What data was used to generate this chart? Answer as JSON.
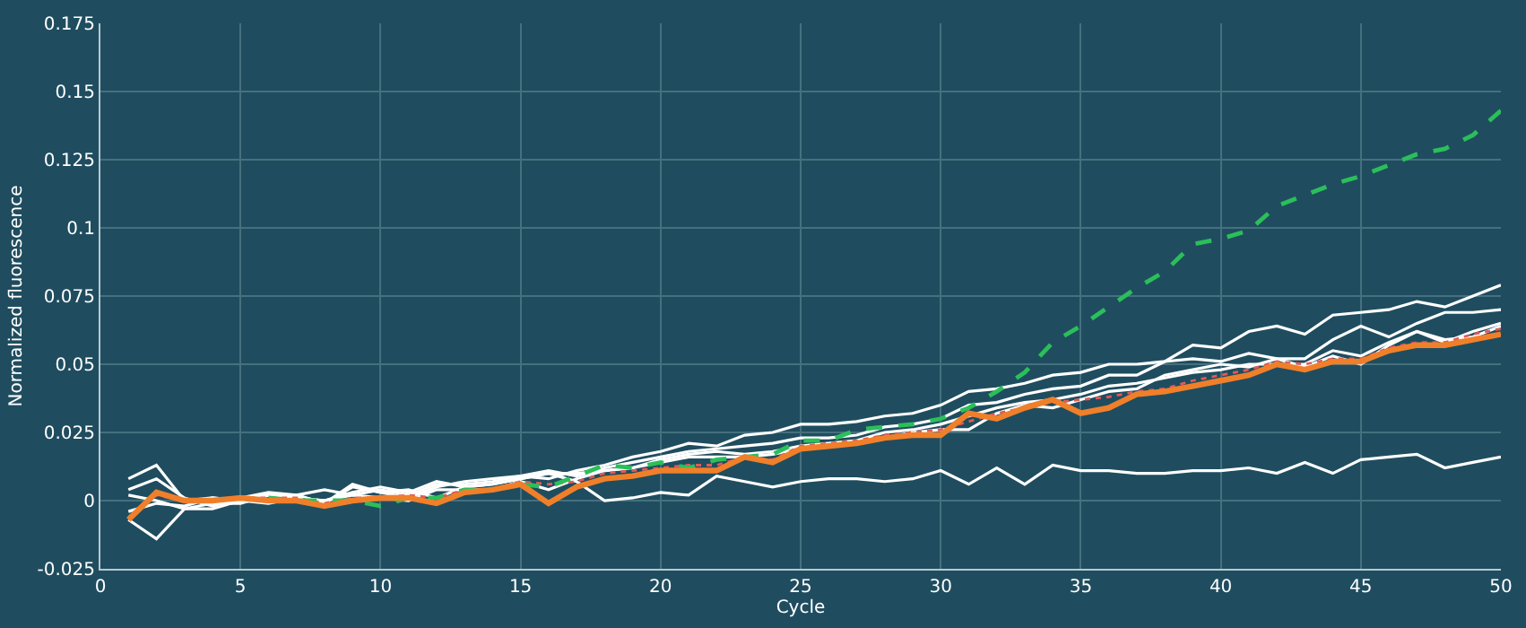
{
  "chart_data": {
    "type": "line",
    "xlabel": "Cycle",
    "ylabel": "Normalized fluorescence",
    "x": [
      1,
      2,
      3,
      4,
      5,
      6,
      7,
      8,
      9,
      10,
      11,
      12,
      13,
      14,
      15,
      16,
      17,
      18,
      19,
      20,
      21,
      22,
      23,
      24,
      25,
      26,
      27,
      28,
      29,
      30,
      31,
      32,
      33,
      34,
      35,
      36,
      37,
      38,
      39,
      40,
      41,
      42,
      43,
      44,
      45,
      46,
      47,
      48,
      49,
      50
    ],
    "xlim": [
      0,
      50
    ],
    "xticks": [
      0,
      5,
      10,
      15,
      20,
      25,
      30,
      35,
      40,
      45,
      50
    ],
    "ylim": [
      -0.025,
      0.175
    ],
    "yticks": [
      -0.025,
      0,
      0.025,
      0.05,
      0.075,
      0.1,
      0.125,
      0.15,
      0.175
    ],
    "grid": true,
    "marker": "none",
    "series": [
      {
        "color": "#ffffff",
        "line_style": "solid",
        "values": [
          0.008,
          0.013,
          0.0,
          0.001,
          0.0,
          0.002,
          0.002,
          0.004,
          0.002,
          0.004,
          0.002,
          0.006,
          0.006,
          0.007,
          0.009,
          0.008,
          0.011,
          0.013,
          0.016,
          0.018,
          0.021,
          0.02,
          0.024,
          0.025,
          0.028,
          0.028,
          0.029,
          0.031,
          0.032,
          0.035,
          0.04,
          0.041,
          0.043,
          0.046,
          0.047,
          0.05,
          0.05,
          0.051,
          0.057,
          0.056,
          0.062,
          0.064,
          0.061,
          0.068,
          0.069,
          0.07,
          0.073,
          0.071,
          0.075,
          0.079
        ]
      },
      {
        "color": "#ffffff",
        "line_style": "solid",
        "values": [
          0.004,
          0.008,
          0.001,
          -0.002,
          0.001,
          0.003,
          0.002,
          -0.001,
          0.005,
          0.003,
          0.001,
          0.005,
          0.007,
          0.008,
          0.009,
          0.011,
          0.009,
          0.012,
          0.014,
          0.016,
          0.018,
          0.019,
          0.02,
          0.021,
          0.023,
          0.023,
          0.024,
          0.027,
          0.028,
          0.03,
          0.035,
          0.036,
          0.039,
          0.041,
          0.042,
          0.046,
          0.046,
          0.051,
          0.052,
          0.051,
          0.054,
          0.052,
          0.052,
          0.059,
          0.064,
          0.06,
          0.065,
          0.069,
          0.069,
          0.07
        ]
      },
      {
        "color": "#ffffff",
        "line_style": "solid",
        "values": [
          0.002,
          0.0,
          -0.003,
          -0.003,
          0.0,
          0.002,
          0.001,
          0.0,
          0.003,
          0.005,
          0.003,
          0.007,
          0.005,
          0.006,
          0.008,
          0.01,
          0.01,
          0.011,
          0.012,
          0.015,
          0.017,
          0.018,
          0.017,
          0.018,
          0.02,
          0.021,
          0.022,
          0.025,
          0.026,
          0.028,
          0.031,
          0.034,
          0.036,
          0.037,
          0.039,
          0.042,
          0.043,
          0.045,
          0.047,
          0.048,
          0.05,
          0.05,
          0.05,
          0.055,
          0.053,
          0.058,
          0.062,
          0.058,
          0.062,
          0.065
        ]
      },
      {
        "color": "#ffffff",
        "line_style": "solid",
        "values": [
          -0.004,
          -0.001,
          -0.002,
          0.001,
          0.0,
          -0.001,
          0.001,
          0.0,
          0.002,
          0.001,
          0.0,
          0.004,
          0.004,
          0.004,
          0.007,
          0.004,
          0.008,
          0.011,
          0.012,
          0.014,
          0.016,
          0.016,
          0.016,
          0.017,
          0.019,
          0.02,
          0.021,
          0.023,
          0.025,
          0.026,
          0.026,
          0.032,
          0.035,
          0.034,
          0.037,
          0.04,
          0.041,
          0.046,
          0.048,
          0.05,
          0.049,
          0.052,
          0.049,
          0.053,
          0.05,
          0.057,
          0.062,
          0.059,
          0.06,
          0.064
        ]
      },
      {
        "color": "#ffffff",
        "line_style": "solid",
        "values": [
          -0.007,
          -0.014,
          -0.003,
          -0.001,
          -0.001,
          0.002,
          0.002,
          -0.001,
          0.006,
          0.003,
          0.004,
          0.001,
          0.005,
          0.006,
          0.008,
          0.01,
          0.007,
          0.0,
          0.001,
          0.003,
          0.002,
          0.009,
          0.007,
          0.005,
          0.007,
          0.008,
          0.008,
          0.007,
          0.008,
          0.011,
          0.006,
          0.012,
          0.006,
          0.013,
          0.011,
          0.011,
          0.01,
          0.01,
          0.011,
          0.011,
          0.012,
          0.01,
          0.014,
          0.01,
          0.015,
          0.016,
          0.017,
          0.012,
          0.014,
          0.016
        ]
      },
      {
        "color": "#e05a5a",
        "line_style": "dotted",
        "values": [
          -0.006,
          0.002,
          0.0,
          0.0,
          0.001,
          0.001,
          0.001,
          -0.001,
          0.001,
          0.001,
          0.002,
          0.001,
          0.004,
          0.004,
          0.007,
          0.006,
          0.007,
          0.01,
          0.011,
          0.012,
          0.013,
          0.013,
          0.016,
          0.015,
          0.02,
          0.021,
          0.022,
          0.024,
          0.025,
          0.026,
          0.029,
          0.032,
          0.034,
          0.036,
          0.037,
          0.038,
          0.04,
          0.041,
          0.044,
          0.046,
          0.048,
          0.051,
          0.05,
          0.052,
          0.052,
          0.056,
          0.058,
          0.058,
          0.061,
          0.063
        ]
      },
      {
        "color": "#2bbf5a",
        "line_style": "dashed",
        "values": [
          null,
          null,
          null,
          null,
          null,
          0.001,
          0.0,
          0.0,
          0.0,
          -0.002,
          0.001,
          0.001,
          0.004,
          0.004,
          0.006,
          0.005,
          0.009,
          0.013,
          0.012,
          0.014,
          0.012,
          0.015,
          0.016,
          0.017,
          0.022,
          0.022,
          0.026,
          0.027,
          0.028,
          0.03,
          0.034,
          0.04,
          0.047,
          0.058,
          0.064,
          0.071,
          0.078,
          0.084,
          0.094,
          0.096,
          0.099,
          0.108,
          0.112,
          0.116,
          0.119,
          0.123,
          0.127,
          0.129,
          0.134,
          0.143
        ]
      },
      {
        "color": "#f07f2a",
        "line_style": "solid",
        "values": [
          -0.007,
          0.003,
          0.0,
          0.0,
          0.001,
          0.0,
          0.0,
          -0.002,
          0.0,
          0.001,
          0.001,
          -0.001,
          0.003,
          0.004,
          0.006,
          -0.001,
          0.005,
          0.008,
          0.009,
          0.011,
          0.011,
          0.011,
          0.016,
          0.014,
          0.019,
          0.02,
          0.021,
          0.023,
          0.024,
          0.024,
          0.032,
          0.03,
          0.034,
          0.037,
          0.032,
          0.034,
          0.039,
          0.04,
          0.042,
          0.044,
          0.046,
          0.05,
          0.048,
          0.051,
          0.051,
          0.055,
          0.057,
          0.057,
          0.059,
          0.061
        ]
      }
    ]
  }
}
